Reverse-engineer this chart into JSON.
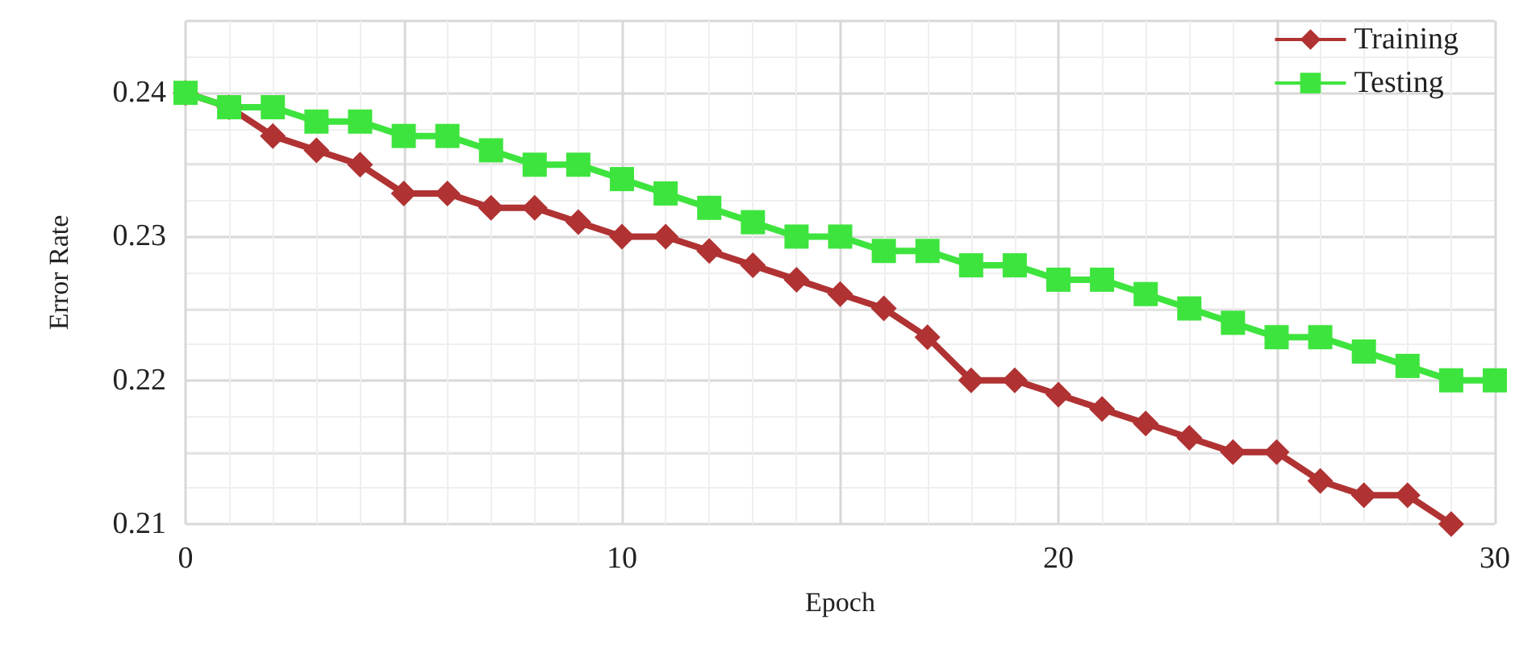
{
  "chart_data": {
    "type": "line",
    "xlabel": "Epoch",
    "ylabel": "Error Rate",
    "x": [
      0,
      1,
      2,
      3,
      4,
      5,
      6,
      7,
      8,
      9,
      10,
      11,
      12,
      13,
      14,
      15,
      16,
      17,
      18,
      19,
      20,
      21,
      22,
      23,
      24,
      25,
      26,
      27,
      28,
      29,
      30
    ],
    "series": [
      {
        "name": "Training",
        "color": "#b03232",
        "marker": "diamond",
        "x": [
          0,
          1,
          2,
          3,
          4,
          5,
          6,
          7,
          8,
          9,
          10,
          11,
          12,
          13,
          14,
          15,
          16,
          17,
          18,
          19,
          20,
          21,
          22,
          23,
          24,
          25,
          26,
          27,
          28,
          29
        ],
        "values": [
          0.24,
          0.239,
          0.237,
          0.236,
          0.235,
          0.233,
          0.233,
          0.232,
          0.232,
          0.231,
          0.23,
          0.23,
          0.229,
          0.228,
          0.227,
          0.226,
          0.225,
          0.223,
          0.22,
          0.22,
          0.219,
          0.218,
          0.217,
          0.216,
          0.215,
          0.215,
          0.213,
          0.212,
          0.212,
          0.21
        ]
      },
      {
        "name": "Testing",
        "color": "#3ee43e",
        "marker": "square",
        "values": [
          0.24,
          0.239,
          0.239,
          0.238,
          0.238,
          0.237,
          0.237,
          0.236,
          0.235,
          0.235,
          0.234,
          0.233,
          0.232,
          0.231,
          0.23,
          0.23,
          0.229,
          0.229,
          0.228,
          0.228,
          0.227,
          0.227,
          0.226,
          0.225,
          0.224,
          0.223,
          0.223,
          0.222,
          0.221,
          0.22,
          0.22
        ]
      }
    ],
    "xlim": [
      0,
      30
    ],
    "xticks": [
      0,
      {
        "value": 5,
        "label": null
      },
      10,
      {
        "value": 15,
        "label": null
      },
      20,
      {
        "value": 25,
        "label": null
      },
      30
    ],
    "ylim": [
      0.21,
      0.245
    ],
    "yticks": [
      0.21,
      {
        "value": 0.215,
        "label": null
      },
      0.22,
      {
        "value": 0.225,
        "label": null
      },
      0.23,
      {
        "value": 0.235,
        "label": null
      },
      0.24,
      {
        "value": 0.245,
        "label": null
      }
    ],
    "grid": true,
    "legend": "top right",
    "line_style": "solid"
  }
}
